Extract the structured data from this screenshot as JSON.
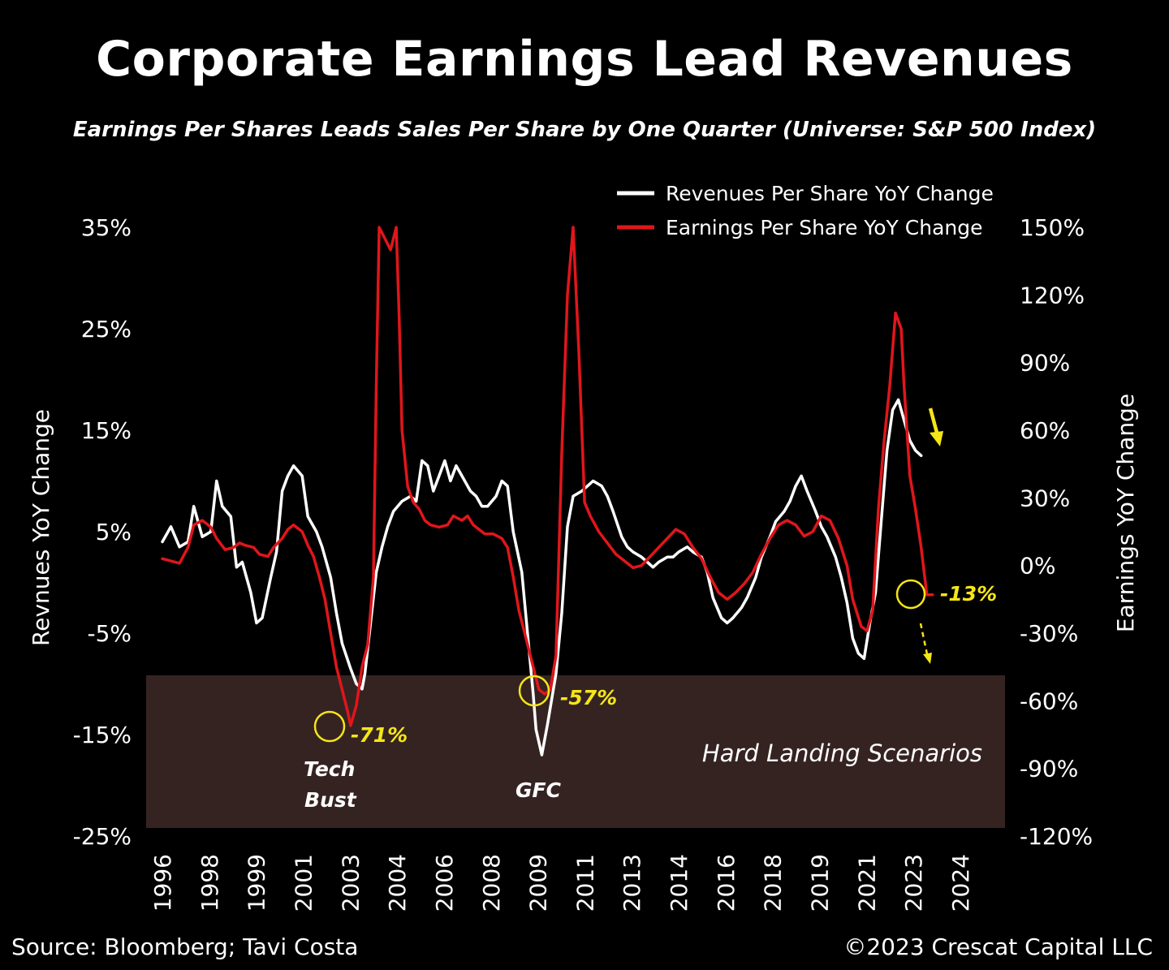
{
  "header": {
    "title": "Corporate Earnings Lead Revenues",
    "subtitle": "Earnings Per Shares Leads Sales Per Share by One Quarter (Universe: S&P 500 Index)"
  },
  "footer": {
    "source": "Source: Bloomberg; Tavi Costa",
    "copyright": "©2023 Crescat Capital LLC"
  },
  "chart_data": {
    "type": "line",
    "ylabel_left": "Revnues YoY Change",
    "ylabel_right": "Earnings YoY Change",
    "ylim_left": [
      -25,
      35
    ],
    "ylim_right": [
      -120,
      150
    ],
    "left_ticks": [
      "35%",
      "25%",
      "15%",
      "5%",
      "-5%",
      "-15%",
      "-25%"
    ],
    "right_ticks": [
      "150%",
      "120%",
      "90%",
      "60%",
      "30%",
      "0%",
      "-30%",
      "-60%",
      "-90%",
      "-120%"
    ],
    "x_ticks": [
      "1996",
      "1998",
      "1999",
      "2001",
      "2003",
      "2004",
      "2006",
      "2008",
      "2009",
      "2011",
      "2013",
      "2014",
      "2016",
      "2018",
      "2019",
      "2021",
      "2023",
      "2024"
    ],
    "grid": false,
    "legend_position": "top-right",
    "series": [
      {
        "name": "Revenues Per Share YoY Change",
        "axis": "left",
        "color": "#ffffff",
        "points": [
          [
            1996.0,
            4.0
          ],
          [
            1996.3,
            5.5
          ],
          [
            1996.6,
            3.5
          ],
          [
            1996.9,
            4.0
          ],
          [
            1997.1,
            7.5
          ],
          [
            1997.4,
            4.5
          ],
          [
            1997.7,
            5.0
          ],
          [
            1997.9,
            10.0
          ],
          [
            1998.1,
            7.5
          ],
          [
            1998.4,
            6.5
          ],
          [
            1998.6,
            1.5
          ],
          [
            1998.8,
            2.0
          ],
          [
            1999.1,
            -1.0
          ],
          [
            1999.3,
            -4.0
          ],
          [
            1999.5,
            -3.5
          ],
          [
            1999.8,
            0.5
          ],
          [
            2000.0,
            3.0
          ],
          [
            2000.2,
            9.0
          ],
          [
            2000.4,
            10.5
          ],
          [
            2000.6,
            11.5
          ],
          [
            2000.9,
            10.5
          ],
          [
            2001.1,
            6.5
          ],
          [
            2001.4,
            5.0
          ],
          [
            2001.6,
            3.5
          ],
          [
            2001.9,
            0.5
          ],
          [
            2002.1,
            -3.0
          ],
          [
            2002.3,
            -6.0
          ],
          [
            2002.6,
            -8.5
          ],
          [
            2002.8,
            -10.0
          ],
          [
            2003.0,
            -10.5
          ],
          [
            2003.1,
            -9.0
          ],
          [
            2003.3,
            -4.0
          ],
          [
            2003.5,
            1.0
          ],
          [
            2003.7,
            3.5
          ],
          [
            2003.9,
            5.5
          ],
          [
            2004.1,
            7.0
          ],
          [
            2004.4,
            8.0
          ],
          [
            2004.7,
            8.5
          ],
          [
            2004.9,
            8.0
          ],
          [
            2005.1,
            12.0
          ],
          [
            2005.3,
            11.5
          ],
          [
            2005.5,
            9.0
          ],
          [
            2005.7,
            10.5
          ],
          [
            2005.9,
            12.0
          ],
          [
            2006.1,
            10.0
          ],
          [
            2006.3,
            11.5
          ],
          [
            2006.5,
            10.5
          ],
          [
            2006.8,
            9.0
          ],
          [
            2007.0,
            8.5
          ],
          [
            2007.2,
            7.5
          ],
          [
            2007.4,
            7.5
          ],
          [
            2007.7,
            8.5
          ],
          [
            2007.9,
            10.0
          ],
          [
            2008.1,
            9.5
          ],
          [
            2008.3,
            5.0
          ],
          [
            2008.6,
            1.0
          ],
          [
            2008.8,
            -5.0
          ],
          [
            2009.0,
            -11.0
          ],
          [
            2009.1,
            -14.5
          ],
          [
            2009.3,
            -17.0
          ],
          [
            2009.5,
            -14.0
          ],
          [
            2009.8,
            -9.0
          ],
          [
            2010.0,
            -3.0
          ],
          [
            2010.2,
            5.5
          ],
          [
            2010.4,
            8.5
          ],
          [
            2010.7,
            9.0
          ],
          [
            2010.9,
            9.5
          ],
          [
            2011.1,
            10.0
          ],
          [
            2011.4,
            9.5
          ],
          [
            2011.6,
            8.5
          ],
          [
            2011.8,
            7.0
          ],
          [
            2012.1,
            4.5
          ],
          [
            2012.3,
            3.5
          ],
          [
            2012.5,
            3.0
          ],
          [
            2012.8,
            2.5
          ],
          [
            2013.0,
            2.0
          ],
          [
            2013.2,
            1.5
          ],
          [
            2013.4,
            2.0
          ],
          [
            2013.7,
            2.5
          ],
          [
            2013.9,
            2.5
          ],
          [
            2014.1,
            3.0
          ],
          [
            2014.4,
            3.5
          ],
          [
            2014.6,
            3.0
          ],
          [
            2014.9,
            2.5
          ],
          [
            2015.1,
            1.0
          ],
          [
            2015.3,
            -1.5
          ],
          [
            2015.6,
            -3.5
          ],
          [
            2015.8,
            -4.0
          ],
          [
            2016.0,
            -3.5
          ],
          [
            2016.3,
            -2.5
          ],
          [
            2016.5,
            -1.5
          ],
          [
            2016.8,
            0.5
          ],
          [
            2017.0,
            2.5
          ],
          [
            2017.3,
            4.5
          ],
          [
            2017.5,
            6.0
          ],
          [
            2017.8,
            7.0
          ],
          [
            2018.0,
            8.0
          ],
          [
            2018.2,
            9.5
          ],
          [
            2018.4,
            10.5
          ],
          [
            2018.6,
            9.0
          ],
          [
            2018.9,
            7.0
          ],
          [
            2019.1,
            5.5
          ],
          [
            2019.3,
            4.5
          ],
          [
            2019.6,
            2.5
          ],
          [
            2019.8,
            0.5
          ],
          [
            2020.0,
            -2.0
          ],
          [
            2020.2,
            -5.5
          ],
          [
            2020.4,
            -7.0
          ],
          [
            2020.6,
            -7.5
          ],
          [
            2020.8,
            -4.0
          ],
          [
            2021.0,
            -1.0
          ],
          [
            2021.2,
            6.0
          ],
          [
            2021.4,
            13.0
          ],
          [
            2021.6,
            17.0
          ],
          [
            2021.8,
            18.0
          ],
          [
            2022.0,
            16.0
          ],
          [
            2022.2,
            14.0
          ],
          [
            2022.4,
            13.0
          ],
          [
            2022.6,
            12.5
          ]
        ]
      },
      {
        "name": "Earnings Per Share YoY Change",
        "axis": "right",
        "color": "#e0161b",
        "points": [
          [
            1996.0,
            3.0
          ],
          [
            1996.3,
            2.0
          ],
          [
            1996.6,
            1.0
          ],
          [
            1996.9,
            8.0
          ],
          [
            1997.1,
            18.0
          ],
          [
            1997.4,
            20.0
          ],
          [
            1997.7,
            17.0
          ],
          [
            1997.9,
            12.0
          ],
          [
            1998.2,
            7.0
          ],
          [
            1998.5,
            8.0
          ],
          [
            1998.7,
            10.0
          ],
          [
            1998.9,
            9.0
          ],
          [
            1999.2,
            8.0
          ],
          [
            1999.4,
            5.0
          ],
          [
            1999.7,
            4.0
          ],
          [
            1999.9,
            8.0
          ],
          [
            2000.2,
            12.0
          ],
          [
            2000.4,
            16.0
          ],
          [
            2000.6,
            18.0
          ],
          [
            2000.9,
            15.0
          ],
          [
            2001.1,
            9.0
          ],
          [
            2001.3,
            4.0
          ],
          [
            2001.5,
            -5.0
          ],
          [
            2001.7,
            -15.0
          ],
          [
            2001.9,
            -30.0
          ],
          [
            2002.1,
            -45.0
          ],
          [
            2002.3,
            -55.0
          ],
          [
            2002.5,
            -65.0
          ],
          [
            2002.6,
            -71.0
          ],
          [
            2002.8,
            -62.0
          ],
          [
            2003.0,
            -45.0
          ],
          [
            2003.2,
            -35.0
          ],
          [
            2003.4,
            -5.0
          ],
          [
            2003.5,
            80.0
          ],
          [
            2003.6,
            150.0
          ],
          [
            2003.8,
            145.0
          ],
          [
            2004.0,
            140.0
          ],
          [
            2004.2,
            150.0
          ],
          [
            2004.3,
            110.0
          ],
          [
            2004.4,
            60.0
          ],
          [
            2004.6,
            35.0
          ],
          [
            2004.8,
            28.0
          ],
          [
            2005.0,
            25.0
          ],
          [
            2005.2,
            20.0
          ],
          [
            2005.4,
            18.0
          ],
          [
            2005.7,
            17.0
          ],
          [
            2006.0,
            18.0
          ],
          [
            2006.2,
            22.0
          ],
          [
            2006.5,
            20.0
          ],
          [
            2006.7,
            22.0
          ],
          [
            2006.9,
            18.0
          ],
          [
            2007.1,
            16.0
          ],
          [
            2007.3,
            14.0
          ],
          [
            2007.6,
            14.0
          ],
          [
            2007.9,
            12.0
          ],
          [
            2008.1,
            8.0
          ],
          [
            2008.3,
            -5.0
          ],
          [
            2008.5,
            -20.0
          ],
          [
            2008.7,
            -30.0
          ],
          [
            2008.9,
            -40.0
          ],
          [
            2009.1,
            -50.0
          ],
          [
            2009.2,
            -55.0
          ],
          [
            2009.4,
            -57.0
          ],
          [
            2009.6,
            -55.0
          ],
          [
            2009.8,
            -40.0
          ],
          [
            2010.0,
            50.0
          ],
          [
            2010.2,
            120.0
          ],
          [
            2010.4,
            150.0
          ],
          [
            2010.6,
            95.0
          ],
          [
            2010.8,
            28.0
          ],
          [
            2011.0,
            22.0
          ],
          [
            2011.3,
            15.0
          ],
          [
            2011.6,
            10.0
          ],
          [
            2011.9,
            5.0
          ],
          [
            2012.2,
            2.0
          ],
          [
            2012.5,
            -1.0
          ],
          [
            2012.8,
            0.0
          ],
          [
            2013.1,
            4.0
          ],
          [
            2013.4,
            8.0
          ],
          [
            2013.7,
            12.0
          ],
          [
            2014.0,
            16.0
          ],
          [
            2014.3,
            14.0
          ],
          [
            2014.6,
            8.0
          ],
          [
            2014.9,
            3.0
          ],
          [
            2015.2,
            -5.0
          ],
          [
            2015.5,
            -12.0
          ],
          [
            2015.8,
            -15.0
          ],
          [
            2016.1,
            -12.0
          ],
          [
            2016.4,
            -8.0
          ],
          [
            2016.7,
            -3.0
          ],
          [
            2017.0,
            5.0
          ],
          [
            2017.3,
            12.0
          ],
          [
            2017.6,
            18.0
          ],
          [
            2017.9,
            20.0
          ],
          [
            2018.2,
            18.0
          ],
          [
            2018.5,
            13.0
          ],
          [
            2018.8,
            15.0
          ],
          [
            2019.1,
            22.0
          ],
          [
            2019.4,
            20.0
          ],
          [
            2019.7,
            12.0
          ],
          [
            2020.0,
            0.0
          ],
          [
            2020.2,
            -15.0
          ],
          [
            2020.5,
            -27.0
          ],
          [
            2020.7,
            -29.0
          ],
          [
            2020.9,
            -20.0
          ],
          [
            2021.1,
            25.0
          ],
          [
            2021.3,
            55.0
          ],
          [
            2021.5,
            80.0
          ],
          [
            2021.7,
            112.0
          ],
          [
            2021.9,
            105.0
          ],
          [
            2022.0,
            80.0
          ],
          [
            2022.2,
            40.0
          ],
          [
            2022.4,
            25.0
          ],
          [
            2022.6,
            8.0
          ],
          [
            2022.8,
            -13.0
          ],
          [
            2023.0,
            -13.0
          ]
        ]
      }
    ],
    "annotations": [
      {
        "text": "-71%",
        "x": 2002.6,
        "y": -71,
        "axis": "right"
      },
      {
        "text": "-57%",
        "x": 2009.4,
        "y": -57,
        "axis": "right"
      },
      {
        "text": "-13%",
        "x": 2022.9,
        "y": -13,
        "axis": "right"
      },
      {
        "text": "Tech",
        "line": 1
      },
      {
        "text": "Bust",
        "line": 2
      },
      {
        "text": "GFC"
      },
      {
        "text": "Hard Landing Scenarios",
        "y_range": [
          -63,
          -120
        ],
        "axis": "right"
      }
    ],
    "colors": {
      "highlight": "#f5e616",
      "shaded_zone": "#352322"
    }
  }
}
